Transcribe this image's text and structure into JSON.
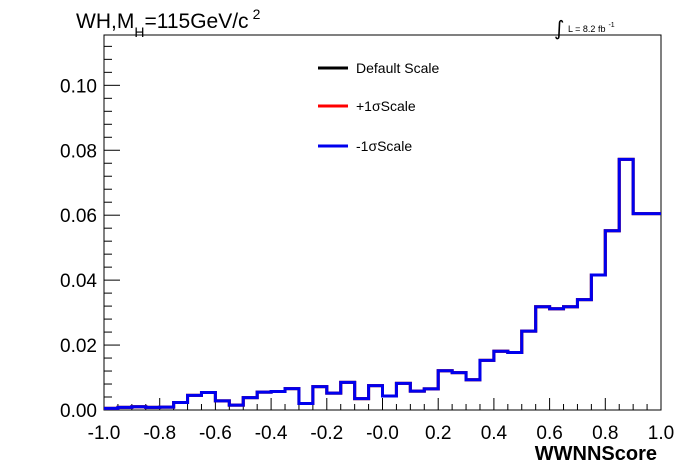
{
  "chart_data": {
    "type": "line",
    "title_parts": {
      "main": "WH,M",
      "sub": "H",
      "rest": "=115GeV/c",
      "sup": "2"
    },
    "lumi_parts": {
      "integral": "∫",
      "text": "L = 8.2 fb",
      "sup": "-1"
    },
    "xlabel": "WWNNScore",
    "ylabel": "",
    "xlim": [
      -1.0,
      1.0
    ],
    "ylim": [
      0.0,
      0.1155
    ],
    "x_ticks": [
      "-1.0",
      "-0.8",
      "-0.6",
      "-0.4",
      "-0.2",
      "-0.0",
      "0.2",
      "0.4",
      "0.6",
      "0.8",
      "1.0"
    ],
    "x_tick_values": [
      -1.0,
      -0.8,
      -0.6,
      -0.4,
      -0.2,
      0.0,
      0.2,
      0.4,
      0.6,
      0.8,
      1.0
    ],
    "y_ticks": [
      "0.00",
      "0.02",
      "0.04",
      "0.06",
      "0.08",
      "0.10"
    ],
    "y_tick_values": [
      0.0,
      0.02,
      0.04,
      0.06,
      0.08,
      0.1
    ],
    "grid": false,
    "legend_position": "top-center",
    "bin_edges_start": -1.0,
    "bin_width": 0.05,
    "series": [
      {
        "name": "Default Scale",
        "color": "#000000",
        "values": [
          0.0005,
          0.0008,
          0.001,
          0.0008,
          0.0009,
          0.0023,
          0.0045,
          0.0054,
          0.0028,
          0.0015,
          0.0038,
          0.0055,
          0.0057,
          0.0066,
          0.002,
          0.0072,
          0.0052,
          0.0085,
          0.0035,
          0.0075,
          0.0043,
          0.0082,
          0.0058,
          0.0065,
          0.0121,
          0.0115,
          0.0093,
          0.0153,
          0.0181,
          0.0177,
          0.0243,
          0.0318,
          0.0312,
          0.0318,
          0.034,
          0.0416,
          0.0552,
          0.0772,
          0.0605
        ]
      },
      {
        "name": "+1σScale",
        "color": "#ff0000",
        "values": [
          0.0005,
          0.0008,
          0.001,
          0.0008,
          0.0009,
          0.0023,
          0.0045,
          0.0054,
          0.0028,
          0.0015,
          0.0038,
          0.0055,
          0.0057,
          0.0066,
          0.002,
          0.0072,
          0.0052,
          0.0085,
          0.0035,
          0.0075,
          0.0043,
          0.0082,
          0.0058,
          0.0065,
          0.0121,
          0.0115,
          0.0093,
          0.0153,
          0.0181,
          0.0177,
          0.0243,
          0.0318,
          0.0312,
          0.0318,
          0.034,
          0.0416,
          0.0552,
          0.0772,
          0.0605
        ]
      },
      {
        "name": "-1σScale",
        "color": "#0000ee",
        "values": [
          0.0005,
          0.0008,
          0.001,
          0.0008,
          0.0009,
          0.0023,
          0.0045,
          0.0054,
          0.0028,
          0.0015,
          0.0038,
          0.0055,
          0.0057,
          0.0066,
          0.002,
          0.0072,
          0.0052,
          0.0085,
          0.0035,
          0.0075,
          0.0043,
          0.0082,
          0.0058,
          0.0065,
          0.0121,
          0.0115,
          0.0093,
          0.0153,
          0.0181,
          0.0177,
          0.0243,
          0.0318,
          0.0312,
          0.0318,
          0.034,
          0.0416,
          0.0552,
          0.0772,
          0.0605
        ]
      }
    ]
  }
}
